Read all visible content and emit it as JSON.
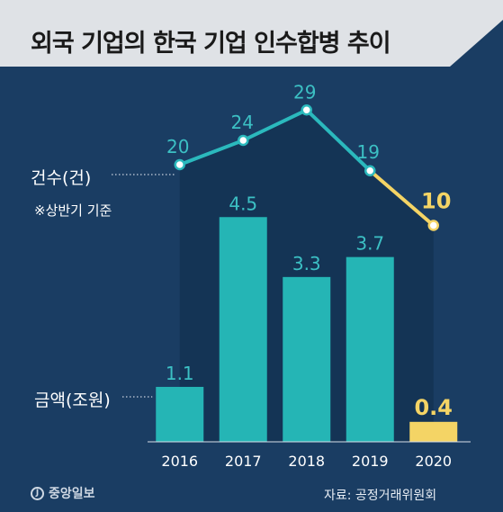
{
  "header": {
    "title": "외국 기업의 한국 기업 인수합병 추이"
  },
  "labels": {
    "count_series": "건수(건)",
    "note": "※상반기 기준",
    "amount_series": "금액(조원)"
  },
  "footer": {
    "logo_glyph": "J",
    "logo_text": "중앙일보",
    "source": "자료: 공정거래위원회"
  },
  "colors": {
    "background": "#1a3d63",
    "header_band": "#dfe2e6",
    "shade": "#143352",
    "bar": "#25b5b5",
    "bar_highlight": "#f4d465",
    "line": "#2bb9bd",
    "line_highlight": "#f4d465",
    "label_teal": "#3cc0c4",
    "label_highlight": "#f4d465",
    "axis_text": "#ffffff"
  },
  "chart_data": {
    "type": "bar+line",
    "categories": [
      "2016",
      "2017",
      "2018",
      "2019",
      "2020"
    ],
    "series": [
      {
        "name": "금액(조원)",
        "kind": "bar",
        "values": [
          1.1,
          4.5,
          3.3,
          3.7,
          0.4
        ],
        "labels": [
          "1.1",
          "4.5",
          "3.3",
          "3.7",
          "0.4"
        ]
      },
      {
        "name": "건수(건)",
        "kind": "line",
        "values": [
          20,
          24,
          29,
          19,
          10
        ],
        "labels": [
          "20",
          "24",
          "29",
          "19",
          "10"
        ]
      }
    ],
    "highlight_category": "2020"
  }
}
